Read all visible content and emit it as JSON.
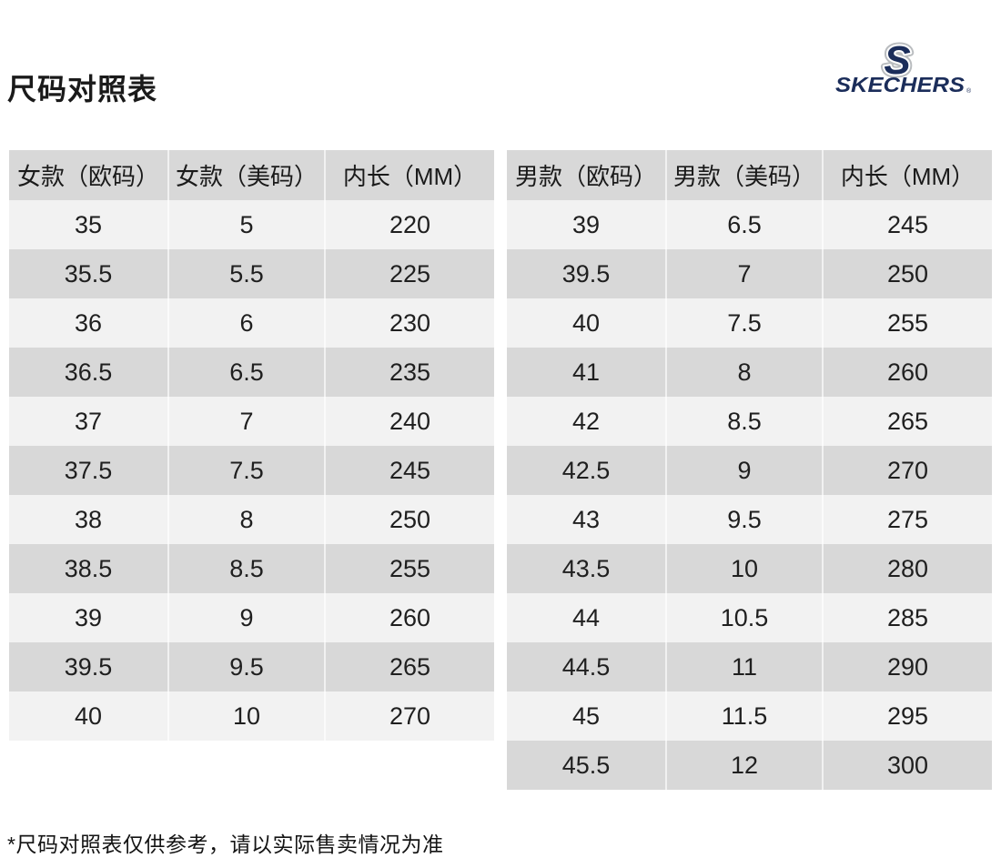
{
  "page": {
    "title": "尺码对照表",
    "footnote": "*尺码对照表仅供参考，请以实际售卖情况为准"
  },
  "logo": {
    "s": "S",
    "brand": "SKECHERS",
    "registered": "®",
    "navy": "#1b2d5a",
    "silver": "#b9bcbf"
  },
  "women_table": {
    "headers": [
      "女款（欧码）",
      "女款（美码）",
      "内长（MM）"
    ],
    "rows": [
      [
        "35",
        "5",
        "220"
      ],
      [
        "35.5",
        "5.5",
        "225"
      ],
      [
        "36",
        "6",
        "230"
      ],
      [
        "36.5",
        "6.5",
        "235"
      ],
      [
        "37",
        "7",
        "240"
      ],
      [
        "37.5",
        "7.5",
        "245"
      ],
      [
        "38",
        "8",
        "250"
      ],
      [
        "38.5",
        "8.5",
        "255"
      ],
      [
        "39",
        "9",
        "260"
      ],
      [
        "39.5",
        "9.5",
        "265"
      ],
      [
        "40",
        "10",
        "270"
      ]
    ]
  },
  "men_table": {
    "headers": [
      "男款（欧码）",
      "男款（美码）",
      "内长（MM）"
    ],
    "rows": [
      [
        "39",
        "6.5",
        "245"
      ],
      [
        "39.5",
        "7",
        "250"
      ],
      [
        "40",
        "7.5",
        "255"
      ],
      [
        "41",
        "8",
        "260"
      ],
      [
        "42",
        "8.5",
        "265"
      ],
      [
        "42.5",
        "9",
        "270"
      ],
      [
        "43",
        "9.5",
        "275"
      ],
      [
        "43.5",
        "10",
        "280"
      ],
      [
        "44",
        "10.5",
        "285"
      ],
      [
        "44.5",
        "11",
        "290"
      ],
      [
        "45",
        "11.5",
        "295"
      ],
      [
        "45.5",
        "12",
        "300"
      ]
    ]
  },
  "colors": {
    "header_bg": "#d8d8d8",
    "row_light_bg": "#f2f2f2",
    "row_dark_bg": "#d8d8d8",
    "text": "#1a1a1a",
    "brand_navy": "#1b2d5a",
    "brand_silver": "#b9bcbf"
  }
}
